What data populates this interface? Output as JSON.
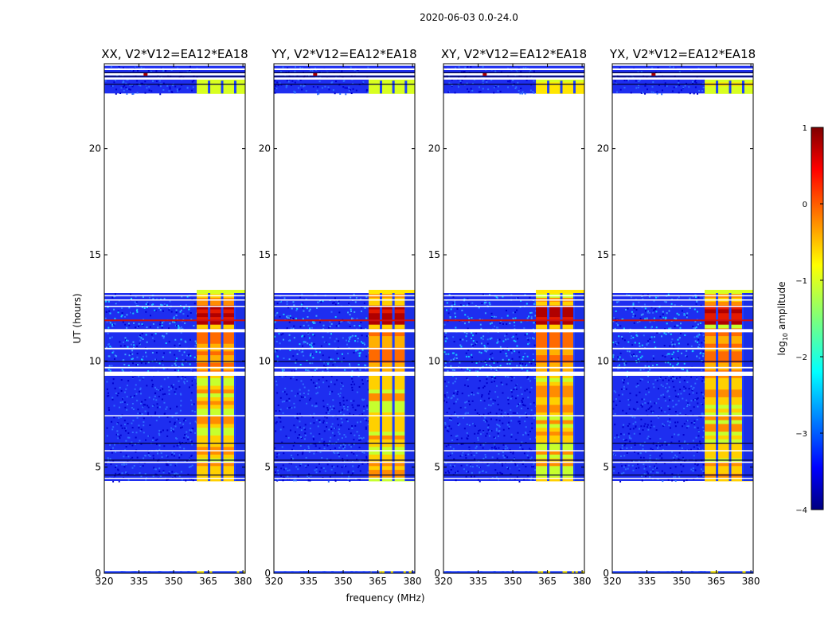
{
  "chart_data": {
    "type": "heatmap",
    "suptitle": "2020-06-03 0.0-24.0",
    "xlabel": "frequency (MHz)",
    "ylabel": "UT (hours)",
    "xlim": [
      320,
      381
    ],
    "ylim": [
      0,
      24
    ],
    "xticks": [
      320,
      335,
      350,
      365,
      380
    ],
    "yticks": [
      0,
      5,
      10,
      15,
      20
    ],
    "colorbar": {
      "label": "log10 amplitude",
      "ticks": [
        1,
        0,
        -1,
        -2,
        -3,
        -4
      ],
      "range": [
        -4,
        1
      ],
      "colormap": "jet"
    },
    "data_rows_ut": [
      [
        0.0,
        0.1
      ],
      [
        4.35,
        13.2
      ],
      [
        22.6,
        23.9
      ]
    ],
    "bright_band_mhz": [
      360,
      381
    ],
    "peak_hours": [
      11.6,
      12.5
    ],
    "panels": [
      {
        "title": "XX, V2*V12=EA12*EA18",
        "band_start": 360
      },
      {
        "title": "YY, V2*V12=EA12*EA18",
        "band_start": 361
      },
      {
        "title": "XY, V2*V12=EA12*EA18",
        "band_start": 360
      },
      {
        "title": "YX, V2*V12=EA12*EA18",
        "band_start": 360
      }
    ]
  }
}
